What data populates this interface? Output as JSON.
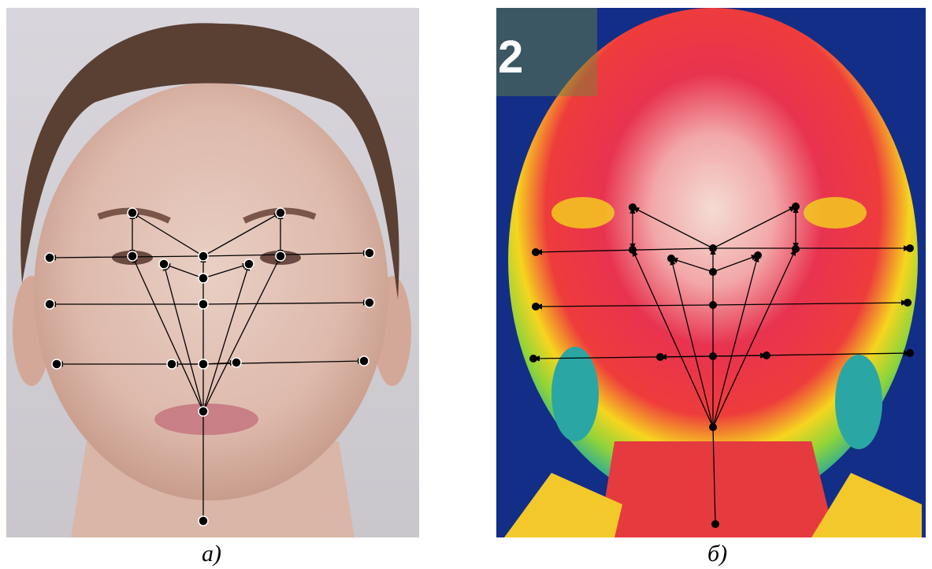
{
  "figure": {
    "panels": [
      {
        "caption": "а)"
      },
      {
        "caption": "б)",
        "overlay_label": "2"
      }
    ]
  }
}
